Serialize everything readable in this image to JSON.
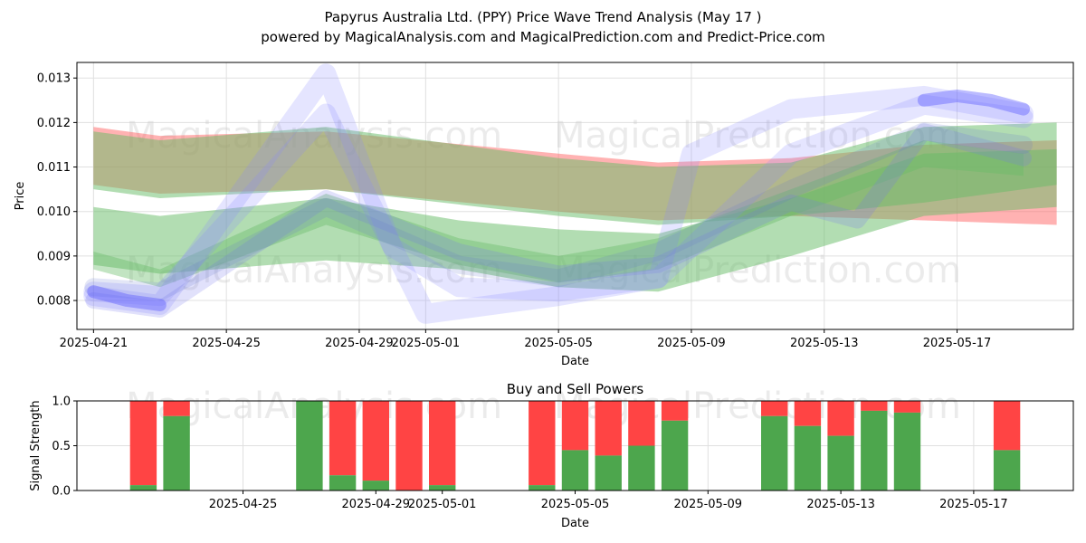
{
  "header": {
    "title": "Papyrus Australia Ltd. (PPY) Price Wave Trend Analysis (May 17 )",
    "subtitle": "powered by MagicalAnalysis.com and MagicalPrediction.com and Predict-Price.com"
  },
  "watermarks": [
    "MagicalAnalysis.com",
    "MagicalPrediction.com"
  ],
  "chart_data": [
    {
      "type": "area",
      "title": "",
      "xlabel": "Date",
      "ylabel": "Price",
      "x_range": [
        "2025-04-20T12:00",
        "2025-05-20T12:00"
      ],
      "ylim": [
        0.00735,
        0.01335
      ],
      "x_ticks": [
        "2025-04-21",
        "2025-04-25",
        "2025-04-29",
        "2025-05-01",
        "2025-05-05",
        "2025-05-09",
        "2025-05-13",
        "2025-05-17"
      ],
      "y_ticks": [
        0.008,
        0.009,
        0.01,
        0.011,
        0.012,
        0.013
      ],
      "grid": true,
      "bands": [
        {
          "color": "#ff6666",
          "opacity": 0.5,
          "x": [
            "2025-04-21",
            "2025-04-23",
            "2025-04-28",
            "2025-05-05",
            "2025-05-08",
            "2025-05-12",
            "2025-05-16",
            "2025-05-20"
          ],
          "upper": [
            0.0119,
            0.0117,
            0.0118,
            0.0113,
            0.0111,
            0.0112,
            0.0115,
            0.0116
          ],
          "lower": [
            0.0106,
            0.0104,
            0.0105,
            0.01,
            0.0098,
            0.0099,
            0.0098,
            0.0097
          ]
        },
        {
          "color": "#66bb66",
          "opacity": 0.5,
          "x": [
            "2025-04-21",
            "2025-04-23",
            "2025-04-28",
            "2025-05-05",
            "2025-05-08",
            "2025-05-12",
            "2025-05-16",
            "2025-05-20"
          ],
          "upper": [
            0.0118,
            0.0116,
            0.0119,
            0.0112,
            0.011,
            0.0111,
            0.0119,
            0.012
          ],
          "lower": [
            0.0105,
            0.0103,
            0.0105,
            0.0099,
            0.0097,
            0.0099,
            0.0102,
            0.0106
          ]
        },
        {
          "color": "#66bb66",
          "opacity": 0.5,
          "x": [
            "2025-04-21",
            "2025-04-23",
            "2025-04-28",
            "2025-05-02",
            "2025-05-05",
            "2025-05-08",
            "2025-05-12",
            "2025-05-16",
            "2025-05-20"
          ],
          "upper": [
            0.0101,
            0.0099,
            0.0103,
            0.0098,
            0.0096,
            0.0095,
            0.0103,
            0.0113,
            0.0114
          ],
          "lower": [
            0.0088,
            0.0086,
            0.0089,
            0.0087,
            0.0083,
            0.0082,
            0.009,
            0.0099,
            0.0101
          ]
        },
        {
          "color": "#66bb66",
          "opacity": 0.4,
          "x": [
            "2025-04-21",
            "2025-04-23",
            "2025-04-28",
            "2025-05-02",
            "2025-05-05",
            "2025-05-08",
            "2025-05-12",
            "2025-05-16",
            "2025-05-19"
          ],
          "upper": [
            0.0091,
            0.0087,
            0.0104,
            0.0094,
            0.009,
            0.0094,
            0.0105,
            0.0116,
            0.0113
          ],
          "lower": [
            0.0087,
            0.0083,
            0.0097,
            0.0088,
            0.0084,
            0.0087,
            0.0099,
            0.011,
            0.0108
          ]
        }
      ],
      "lines": [
        {
          "color": "#8888ff",
          "opacity": 0.22,
          "width": 22,
          "x": [
            "2025-04-21",
            "2025-04-23",
            "2025-04-28",
            "2025-04-30",
            "2025-05-02",
            "2025-05-05",
            "2025-05-08",
            "2025-05-09",
            "2025-05-12",
            "2025-05-16",
            "2025-05-19"
          ],
          "y": [
            0.0081,
            0.0079,
            0.0131,
            0.0092,
            0.0083,
            0.0082,
            0.0085,
            0.0113,
            0.0123,
            0.0126,
            0.0122
          ]
        },
        {
          "color": "#8888ff",
          "opacity": 0.22,
          "width": 22,
          "x": [
            "2025-04-21",
            "2025-04-23",
            "2025-04-28",
            "2025-05-01",
            "2025-05-05",
            "2025-05-08",
            "2025-05-12",
            "2025-05-16",
            "2025-05-19"
          ],
          "y": [
            0.0082,
            0.0081,
            0.0122,
            0.0077,
            0.0081,
            0.0085,
            0.0113,
            0.0124,
            0.0121
          ]
        },
        {
          "color": "#7777ee",
          "opacity": 0.22,
          "width": 18,
          "x": [
            "2025-04-21",
            "2025-04-23",
            "2025-04-28",
            "2025-05-02",
            "2025-05-05",
            "2025-05-08",
            "2025-05-12",
            "2025-05-14",
            "2025-05-16",
            "2025-05-19"
          ],
          "y": [
            0.008,
            0.0078,
            0.0103,
            0.0091,
            0.0086,
            0.0088,
            0.0102,
            0.0098,
            0.0118,
            0.0112
          ]
        },
        {
          "color": "#6677cc",
          "opacity": 0.18,
          "width": 20,
          "x": [
            "2025-04-21",
            "2025-04-23",
            "2025-04-28",
            "2025-05-02",
            "2025-05-05",
            "2025-05-08",
            "2025-05-12",
            "2025-05-16",
            "2025-05-19"
          ],
          "y": [
            0.0083,
            0.0082,
            0.0101,
            0.0088,
            0.0085,
            0.0091,
            0.0105,
            0.0118,
            0.0115
          ]
        },
        {
          "color": "#5555ff",
          "opacity": 0.4,
          "width": 14,
          "x": [
            "2025-04-21",
            "2025-04-22",
            "2025-04-23"
          ],
          "y": [
            0.0082,
            0.008,
            0.0079
          ]
        },
        {
          "color": "#5555ff",
          "opacity": 0.4,
          "width": 14,
          "x": [
            "2025-05-16",
            "2025-05-17",
            "2025-05-18",
            "2025-05-19"
          ],
          "y": [
            0.0125,
            0.0126,
            0.0125,
            0.0123
          ]
        }
      ]
    },
    {
      "type": "bar",
      "title": "Buy and Sell Powers",
      "xlabel": "Date",
      "ylabel": "Signal Strength",
      "ylim": [
        0,
        1.0
      ],
      "y_ticks": [
        0.0,
        0.5,
        1.0
      ],
      "x_ticks": [
        "2025-04-25",
        "2025-04-29",
        "2025-05-01",
        "2025-05-05",
        "2025-05-09",
        "2025-05-13",
        "2025-05-17"
      ],
      "buy_color": "#4da64d",
      "sell_color": "#ff4444",
      "bars": [
        {
          "date": "2025-04-22",
          "buy": 0.06
        },
        {
          "date": "2025-04-23",
          "buy": 0.83
        },
        {
          "date": "2025-04-27",
          "buy": 1.0
        },
        {
          "date": "2025-04-28",
          "buy": 0.17
        },
        {
          "date": "2025-04-29",
          "buy": 0.11
        },
        {
          "date": "2025-04-30",
          "buy": 0.0
        },
        {
          "date": "2025-05-01",
          "buy": 0.06
        },
        {
          "date": "2025-05-04",
          "buy": 0.06
        },
        {
          "date": "2025-05-05",
          "buy": 0.45
        },
        {
          "date": "2025-05-06",
          "buy": 0.39
        },
        {
          "date": "2025-05-07",
          "buy": 0.5
        },
        {
          "date": "2025-05-08",
          "buy": 0.78
        },
        {
          "date": "2025-05-11",
          "buy": 0.83
        },
        {
          "date": "2025-05-12",
          "buy": 0.72
        },
        {
          "date": "2025-05-13",
          "buy": 0.61
        },
        {
          "date": "2025-05-14",
          "buy": 0.89
        },
        {
          "date": "2025-05-15",
          "buy": 0.87
        },
        {
          "date": "2025-05-18",
          "buy": 0.45
        }
      ]
    }
  ]
}
